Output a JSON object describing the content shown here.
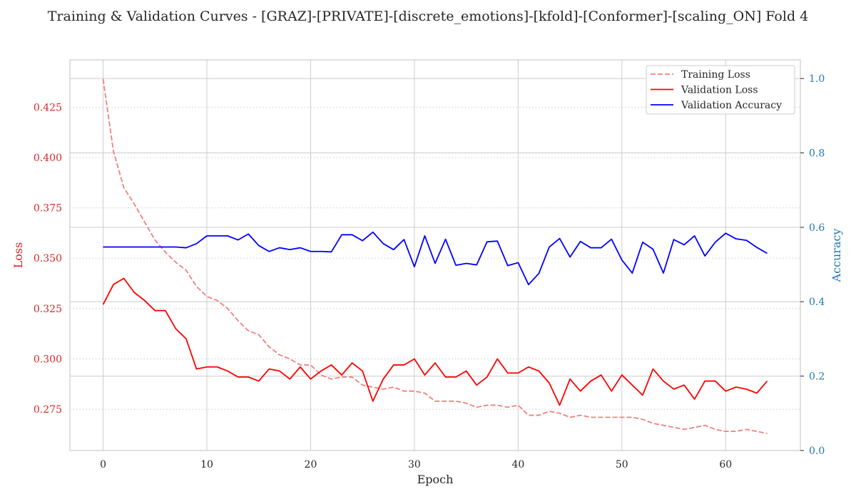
{
  "chart_data": {
    "type": "line",
    "title": "Training & Validation Curves - [GRAZ]-[PRIVATE]-[discrete_emotions]-[kfold]-[Conformer]-[scaling_ON] Fold 4",
    "xlabel": "Epoch",
    "ylabel_left": "Loss",
    "ylabel_right": "Accuracy",
    "xlim": [
      -3.2,
      67.2
    ],
    "ylim_left": [
      0.2545,
      0.4485
    ],
    "ylim_right": [
      0.0,
      1.05
    ],
    "x_ticks": [
      0,
      10,
      20,
      30,
      40,
      50,
      60
    ],
    "y_left_ticks": [
      "0.275",
      "0.300",
      "0.325",
      "0.350",
      "0.375",
      "0.400",
      "0.425"
    ],
    "y_right_ticks": [
      "0.0",
      "0.2",
      "0.4",
      "0.6",
      "0.8",
      "1.0"
    ],
    "legend_position": "top-right",
    "colors": {
      "training_loss": "#f08080",
      "validation_loss": "#ff0000",
      "validation_accuracy": "#0000ff",
      "left_axis": "#d62728",
      "right_axis": "#1f77b4"
    },
    "x": [
      0,
      1,
      2,
      3,
      4,
      5,
      6,
      7,
      8,
      9,
      10,
      11,
      12,
      13,
      14,
      15,
      16,
      17,
      18,
      19,
      20,
      21,
      22,
      23,
      24,
      25,
      26,
      27,
      28,
      29,
      30,
      31,
      32,
      33,
      34,
      35,
      36,
      37,
      38,
      39,
      40,
      41,
      42,
      43,
      44,
      45,
      46,
      47,
      48,
      49,
      50,
      51,
      52,
      53,
      54,
      55,
      56,
      57,
      58,
      59,
      60,
      61,
      62,
      63,
      64
    ],
    "series": [
      {
        "name": "Training Loss",
        "axis": "left",
        "style": "dashed",
        "values": [
          0.439,
          0.403,
          0.385,
          0.377,
          0.368,
          0.359,
          0.353,
          0.348,
          0.344,
          0.336,
          0.331,
          0.329,
          0.325,
          0.319,
          0.314,
          0.312,
          0.306,
          0.302,
          0.3,
          0.297,
          0.297,
          0.292,
          0.29,
          0.291,
          0.291,
          0.287,
          0.286,
          0.285,
          0.286,
          0.284,
          0.284,
          0.283,
          0.279,
          0.279,
          0.279,
          0.278,
          0.276,
          0.277,
          0.277,
          0.276,
          0.277,
          0.272,
          0.272,
          0.274,
          0.273,
          0.271,
          0.272,
          0.271,
          0.271,
          0.271,
          0.271,
          0.271,
          0.27,
          0.268,
          0.267,
          0.266,
          0.265,
          0.266,
          0.267,
          0.265,
          0.264,
          0.264,
          0.265,
          0.264,
          0.263
        ]
      },
      {
        "name": "Validation Loss",
        "axis": "left",
        "style": "solid",
        "values": [
          0.327,
          0.337,
          0.34,
          0.333,
          0.329,
          0.324,
          0.324,
          0.315,
          0.31,
          0.295,
          0.296,
          0.296,
          0.294,
          0.291,
          0.291,
          0.289,
          0.295,
          0.294,
          0.29,
          0.296,
          0.29,
          0.294,
          0.297,
          0.292,
          0.298,
          0.294,
          0.279,
          0.29,
          0.297,
          0.297,
          0.3,
          0.292,
          0.298,
          0.291,
          0.291,
          0.294,
          0.287,
          0.291,
          0.3,
          0.293,
          0.293,
          0.296,
          0.294,
          0.288,
          0.277,
          0.29,
          0.284,
          0.289,
          0.292,
          0.284,
          0.292,
          0.287,
          0.282,
          0.295,
          0.289,
          0.285,
          0.287,
          0.28,
          0.289,
          0.289,
          0.284,
          0.286,
          0.285,
          0.283,
          0.289
        ]
      },
      {
        "name": "Validation Accuracy",
        "axis": "right",
        "style": "solid",
        "values": [
          0.547,
          0.547,
          0.547,
          0.547,
          0.547,
          0.547,
          0.547,
          0.547,
          0.545,
          0.556,
          0.577,
          0.577,
          0.577,
          0.566,
          0.582,
          0.551,
          0.535,
          0.545,
          0.54,
          0.545,
          0.535,
          0.535,
          0.534,
          0.58,
          0.58,
          0.564,
          0.587,
          0.556,
          0.54,
          0.567,
          0.494,
          0.577,
          0.503,
          0.568,
          0.498,
          0.503,
          0.499,
          0.561,
          0.563,
          0.497,
          0.505,
          0.446,
          0.476,
          0.547,
          0.57,
          0.52,
          0.562,
          0.545,
          0.545,
          0.568,
          0.512,
          0.477,
          0.56,
          0.541,
          0.477,
          0.567,
          0.553,
          0.577,
          0.523,
          0.56,
          0.584,
          0.569,
          0.565,
          0.546,
          0.53
        ]
      }
    ],
    "grid": true
  }
}
